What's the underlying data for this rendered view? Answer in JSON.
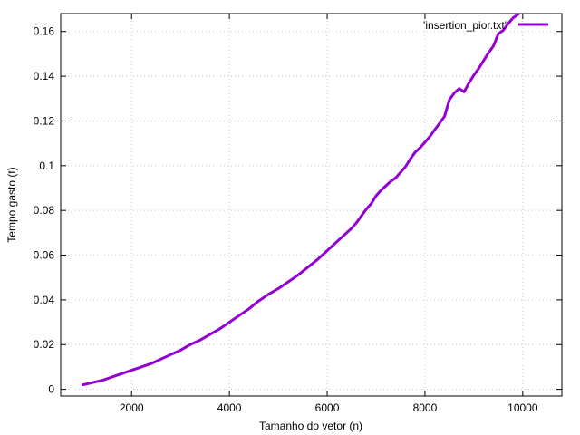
{
  "chart_data": {
    "type": "line",
    "xlabel": "Tamanho do vetor (n)",
    "ylabel": "Tempo gasto (t)",
    "xlim": [
      550,
      10800
    ],
    "ylim": [
      -0.003,
      0.168
    ],
    "xticks": [
      2000,
      4000,
      6000,
      8000,
      10000
    ],
    "xtick_labels": [
      "2000",
      "4000",
      "6000",
      "8000",
      "10000"
    ],
    "yticks": [
      0,
      0.02,
      0.04,
      0.06,
      0.08,
      0.1,
      0.12,
      0.14,
      0.16
    ],
    "ytick_labels": [
      "0",
      "0.02",
      "0.04",
      "0.06",
      "0.08",
      "0.1",
      "0.12",
      "0.14",
      "0.16"
    ],
    "grid": true,
    "legend_position": "top-right",
    "series": [
      {
        "name": "'insertion_pior.txt'",
        "color": "#9400d3",
        "x": [
          1000,
          1200,
          1400,
          1600,
          1800,
          2000,
          2200,
          2400,
          2600,
          2800,
          3000,
          3200,
          3400,
          3600,
          3800,
          4000,
          4200,
          4400,
          4600,
          4800,
          5000,
          5100,
          5200,
          5400,
          5600,
          5800,
          6000,
          6200,
          6400,
          6500,
          6600,
          6700,
          6800,
          6900,
          7000,
          7100,
          7200,
          7300,
          7400,
          7500,
          7600,
          7700,
          7800,
          7900,
          8000,
          8100,
          8200,
          8300,
          8400,
          8500,
          8600,
          8700,
          8800,
          8900,
          9000,
          9100,
          9200,
          9300,
          9400,
          9500,
          9600,
          9700,
          9800,
          9900,
          10000
        ],
        "y": [
          0.002,
          0.003,
          0.004,
          0.0055,
          0.007,
          0.0085,
          0.01,
          0.0115,
          0.0135,
          0.0155,
          0.0175,
          0.02,
          0.022,
          0.0245,
          0.027,
          0.03,
          0.033,
          0.036,
          0.0395,
          0.0425,
          0.045,
          0.0465,
          0.048,
          0.051,
          0.0545,
          0.058,
          0.062,
          0.066,
          0.07,
          0.072,
          0.0745,
          0.0775,
          0.0805,
          0.083,
          0.0865,
          0.089,
          0.091,
          0.093,
          0.0945,
          0.097,
          0.0995,
          0.103,
          0.106,
          0.108,
          0.1105,
          0.113,
          0.116,
          0.119,
          0.122,
          0.1295,
          0.1325,
          0.1345,
          0.133,
          0.137,
          0.1405,
          0.1435,
          0.147,
          0.1505,
          0.1535,
          0.159,
          0.1605,
          0.1635,
          0.166,
          0.1675,
          0.17
        ]
      }
    ]
  }
}
